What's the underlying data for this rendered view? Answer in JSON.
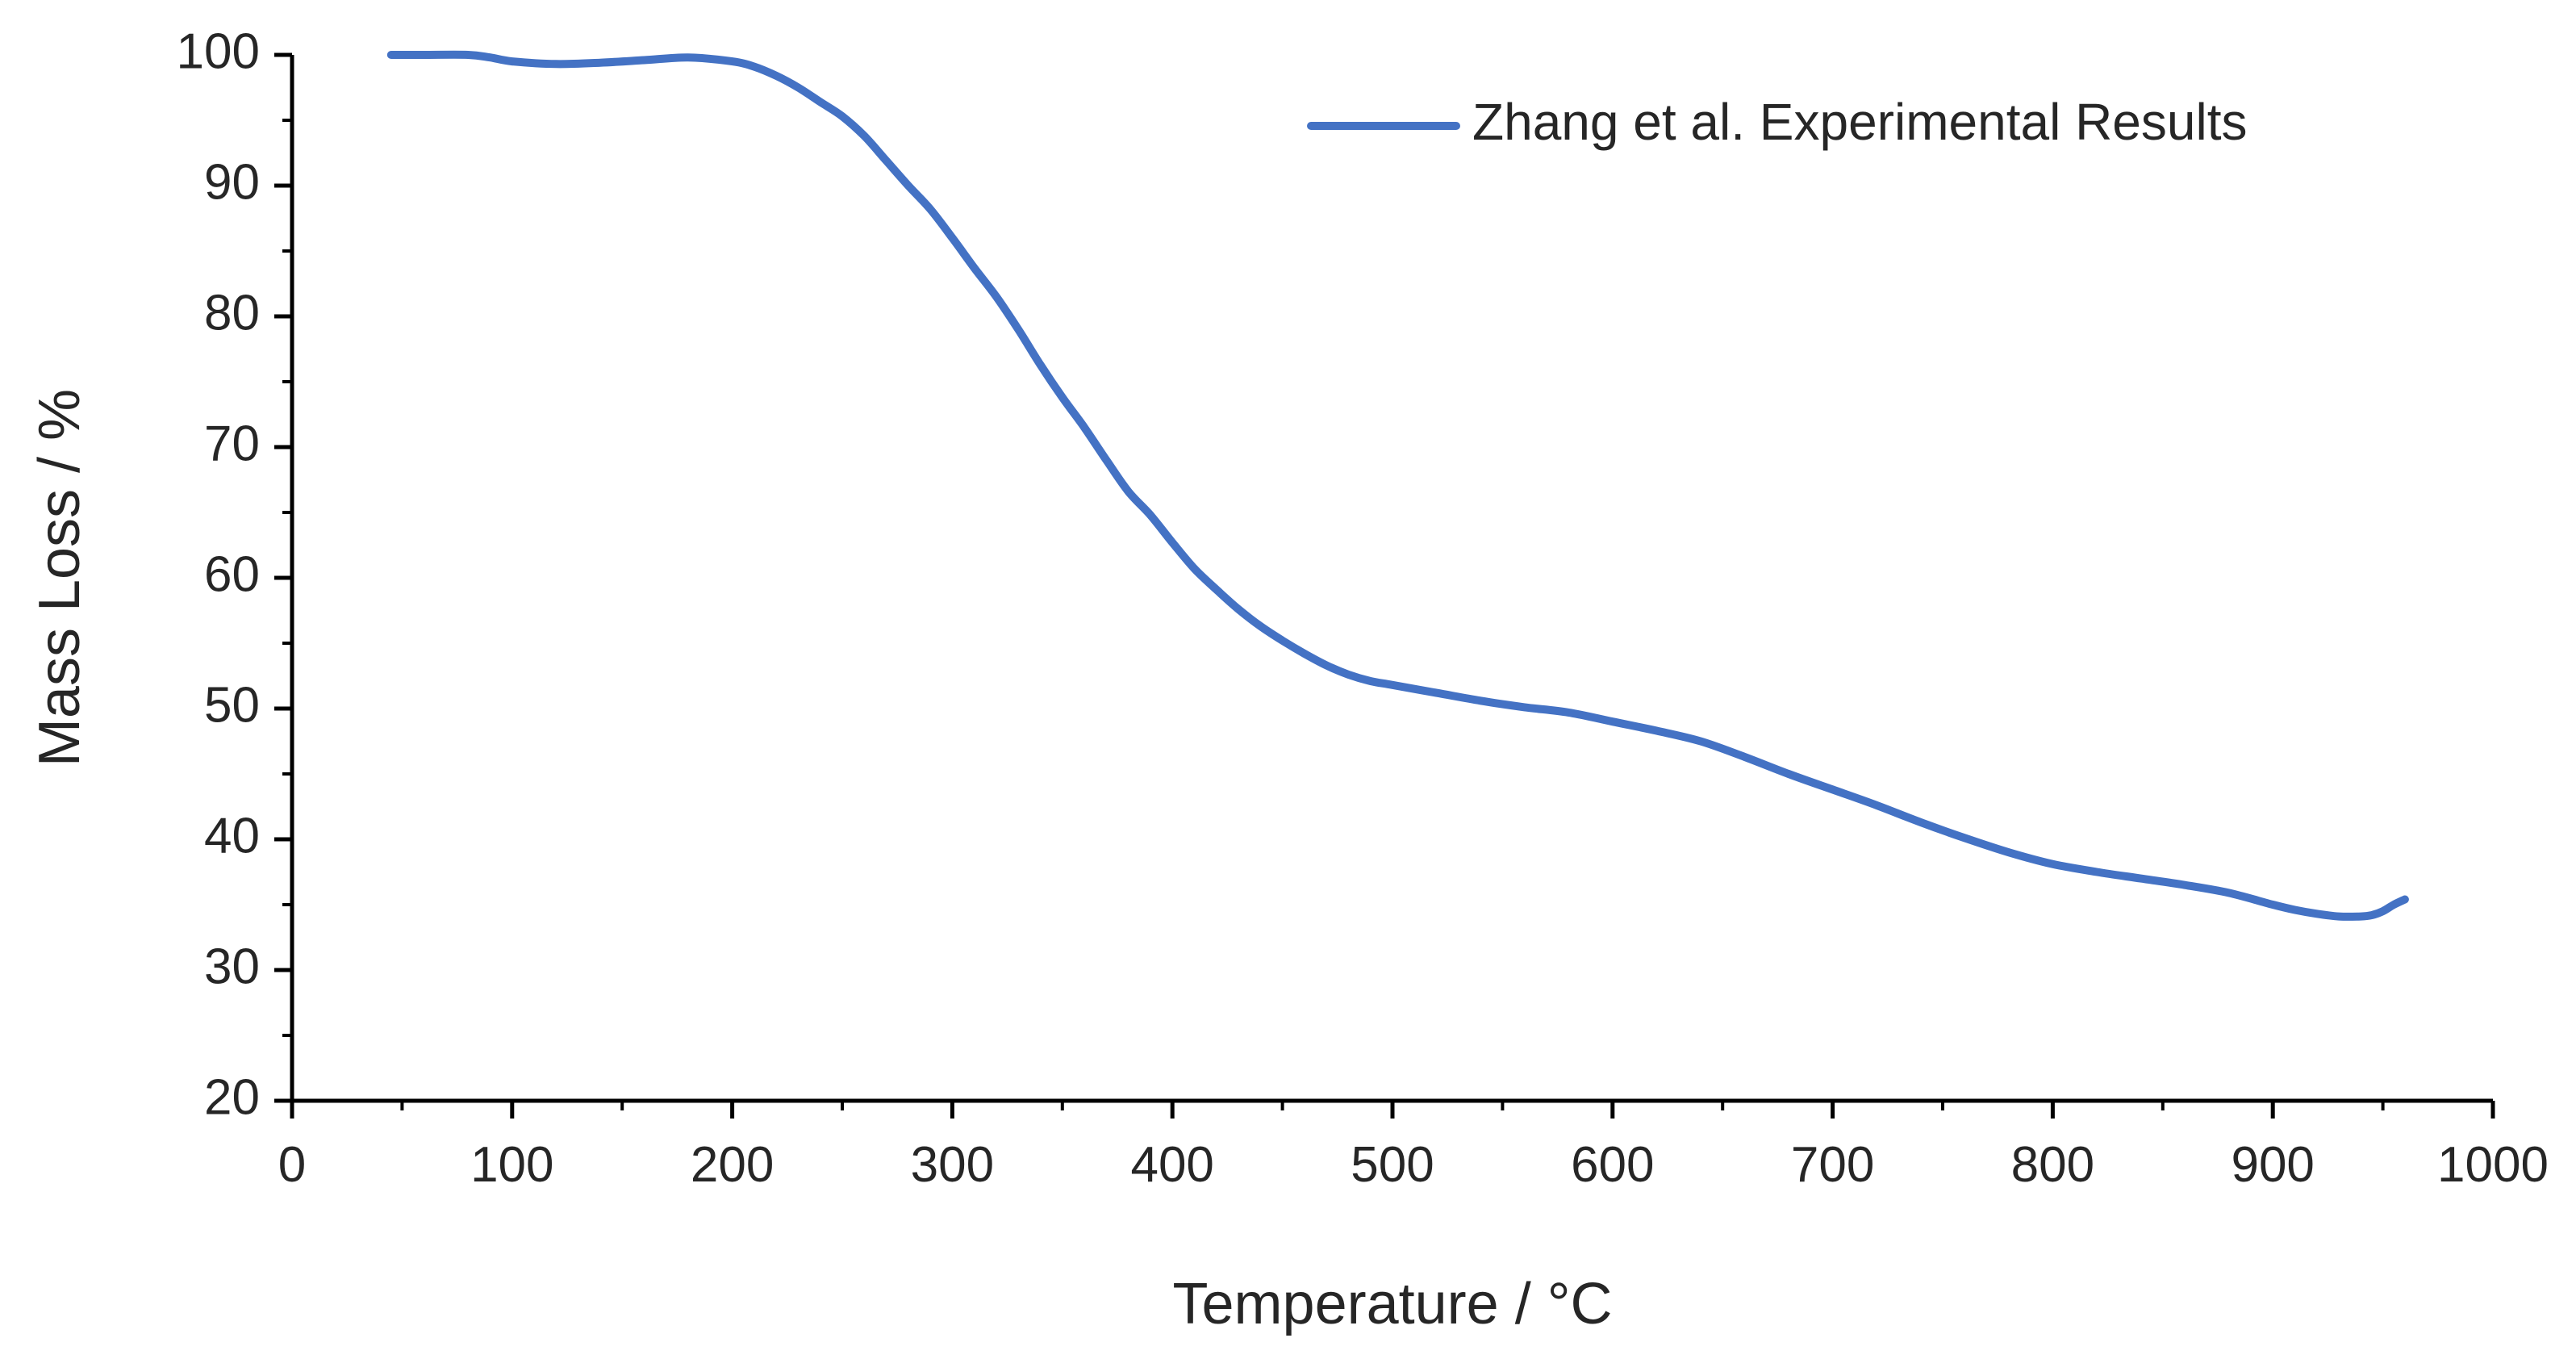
{
  "chart_data": {
    "type": "line",
    "title": "",
    "xlabel": "Temperature / °C",
    "ylabel": "Mass Loss / %",
    "xlim": [
      0,
      1000
    ],
    "ylim": [
      20,
      100
    ],
    "x_ticks": [
      0,
      100,
      200,
      300,
      400,
      500,
      600,
      700,
      800,
      900,
      1000
    ],
    "y_ticks": [
      20,
      30,
      40,
      50,
      60,
      70,
      80,
      90,
      100
    ],
    "x_tick_labels": [
      "0",
      "100",
      "200",
      "300",
      "400",
      "500",
      "600",
      "700",
      "800",
      "900",
      "1000"
    ],
    "y_tick_labels": [
      "20",
      "30",
      "40",
      "50",
      "60",
      "70",
      "80",
      "90",
      "100"
    ],
    "grid": false,
    "legend_position": "top-right",
    "series": [
      {
        "name": "Zhang et al. Experimental Results",
        "color": "#4472C4",
        "x": [
          45,
          60,
          80,
          90,
          100,
          120,
          140,
          160,
          180,
          200,
          210,
          220,
          230,
          240,
          250,
          260,
          270,
          280,
          290,
          300,
          310,
          320,
          330,
          340,
          350,
          360,
          370,
          380,
          390,
          400,
          410,
          420,
          430,
          440,
          450,
          460,
          470,
          480,
          490,
          500,
          520,
          540,
          560,
          580,
          600,
          620,
          640,
          660,
          680,
          700,
          720,
          740,
          760,
          780,
          800,
          820,
          840,
          860,
          880,
          900,
          910,
          920,
          930,
          940,
          945,
          950,
          955,
          960
        ],
        "y": [
          100,
          100,
          100,
          99.8,
          99.5,
          99.3,
          99.4,
          99.6,
          99.8,
          99.5,
          99.1,
          98.4,
          97.5,
          96.4,
          95.3,
          93.8,
          91.9,
          90.0,
          88.2,
          86.0,
          83.7,
          81.5,
          79.0,
          76.3,
          73.8,
          71.5,
          69.0,
          66.6,
          64.8,
          62.7,
          60.7,
          59.1,
          57.6,
          56.3,
          55.2,
          54.2,
          53.3,
          52.6,
          52.1,
          51.8,
          51.2,
          50.6,
          50.1,
          49.7,
          49.0,
          48.3,
          47.5,
          46.3,
          45.0,
          43.8,
          42.6,
          41.3,
          40.1,
          39.0,
          38.1,
          37.5,
          37.0,
          36.5,
          35.9,
          35.0,
          34.6,
          34.3,
          34.1,
          34.1,
          34.2,
          34.5,
          35.0,
          35.4
        ]
      }
    ]
  }
}
